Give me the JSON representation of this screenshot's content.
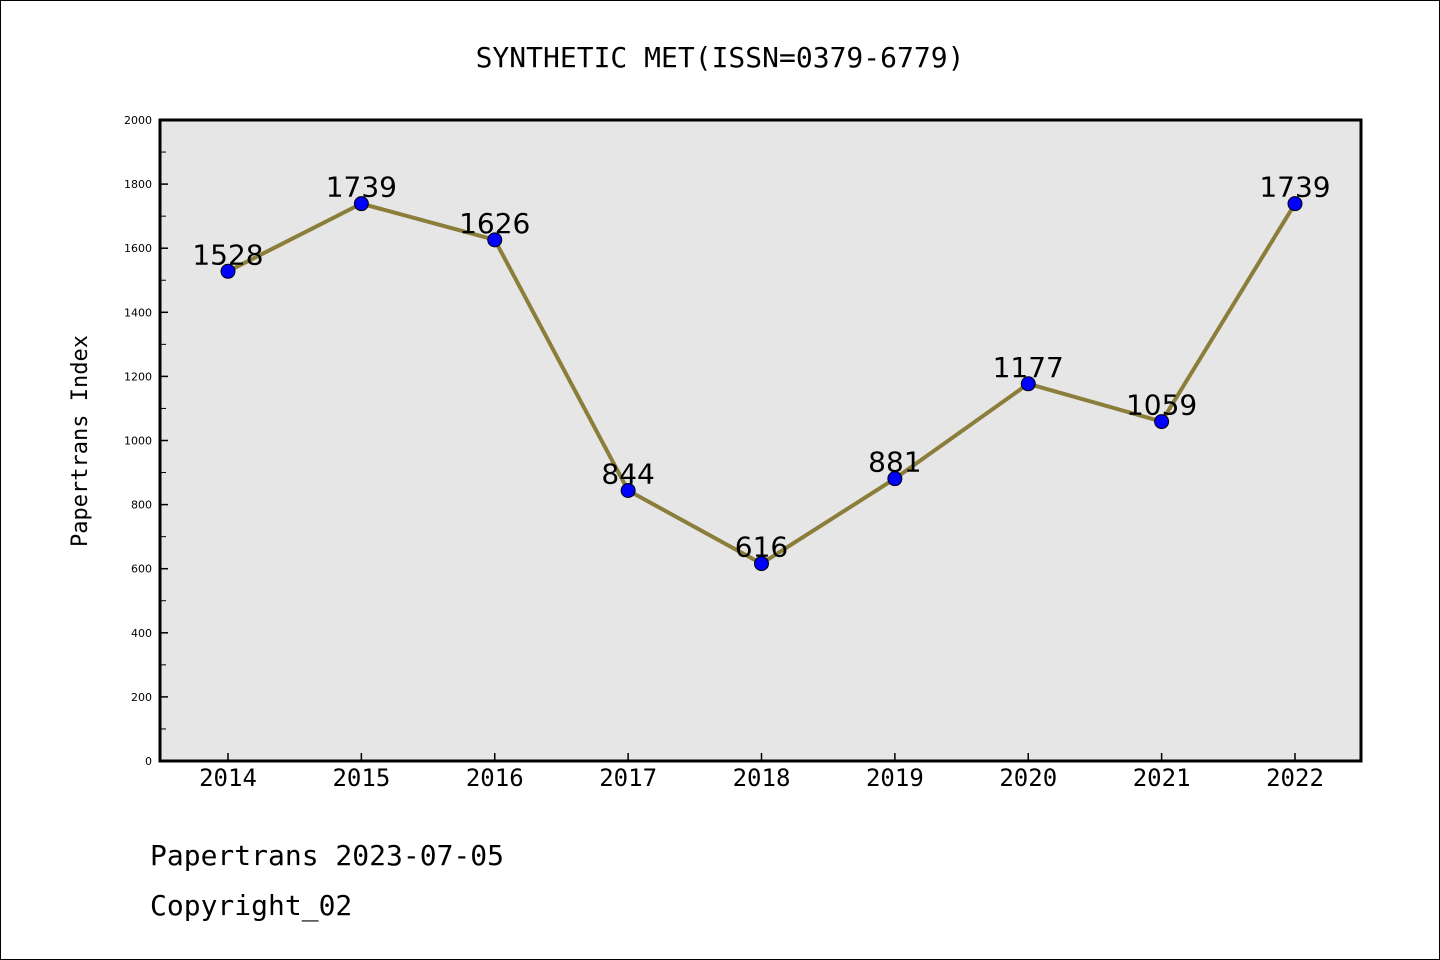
{
  "chart_data": {
    "type": "line",
    "title": "SYNTHETIC MET(ISSN=0379-6779)",
    "xlabel": "",
    "ylabel": "Papertrans Index",
    "categories": [
      "2014",
      "2015",
      "2016",
      "2017",
      "2018",
      "2019",
      "2020",
      "2021",
      "2022"
    ],
    "series": [
      {
        "values": [
          1528,
          1739,
          1626,
          844,
          616,
          881,
          1177,
          1059,
          1739
        ]
      }
    ],
    "ylim": [
      0,
      2000
    ],
    "y_ticks": [
      0,
      200,
      400,
      600,
      800,
      1000,
      1200,
      1400,
      1600,
      1800,
      2000
    ],
    "grid": false,
    "data_labels": true,
    "colors": {
      "line": "#8b7d3a",
      "marker": "#0000ff",
      "plot_background": "#e6e6e6"
    }
  },
  "footer": {
    "line1": "Papertrans 2023-07-05",
    "line2": "Copyright_02"
  }
}
